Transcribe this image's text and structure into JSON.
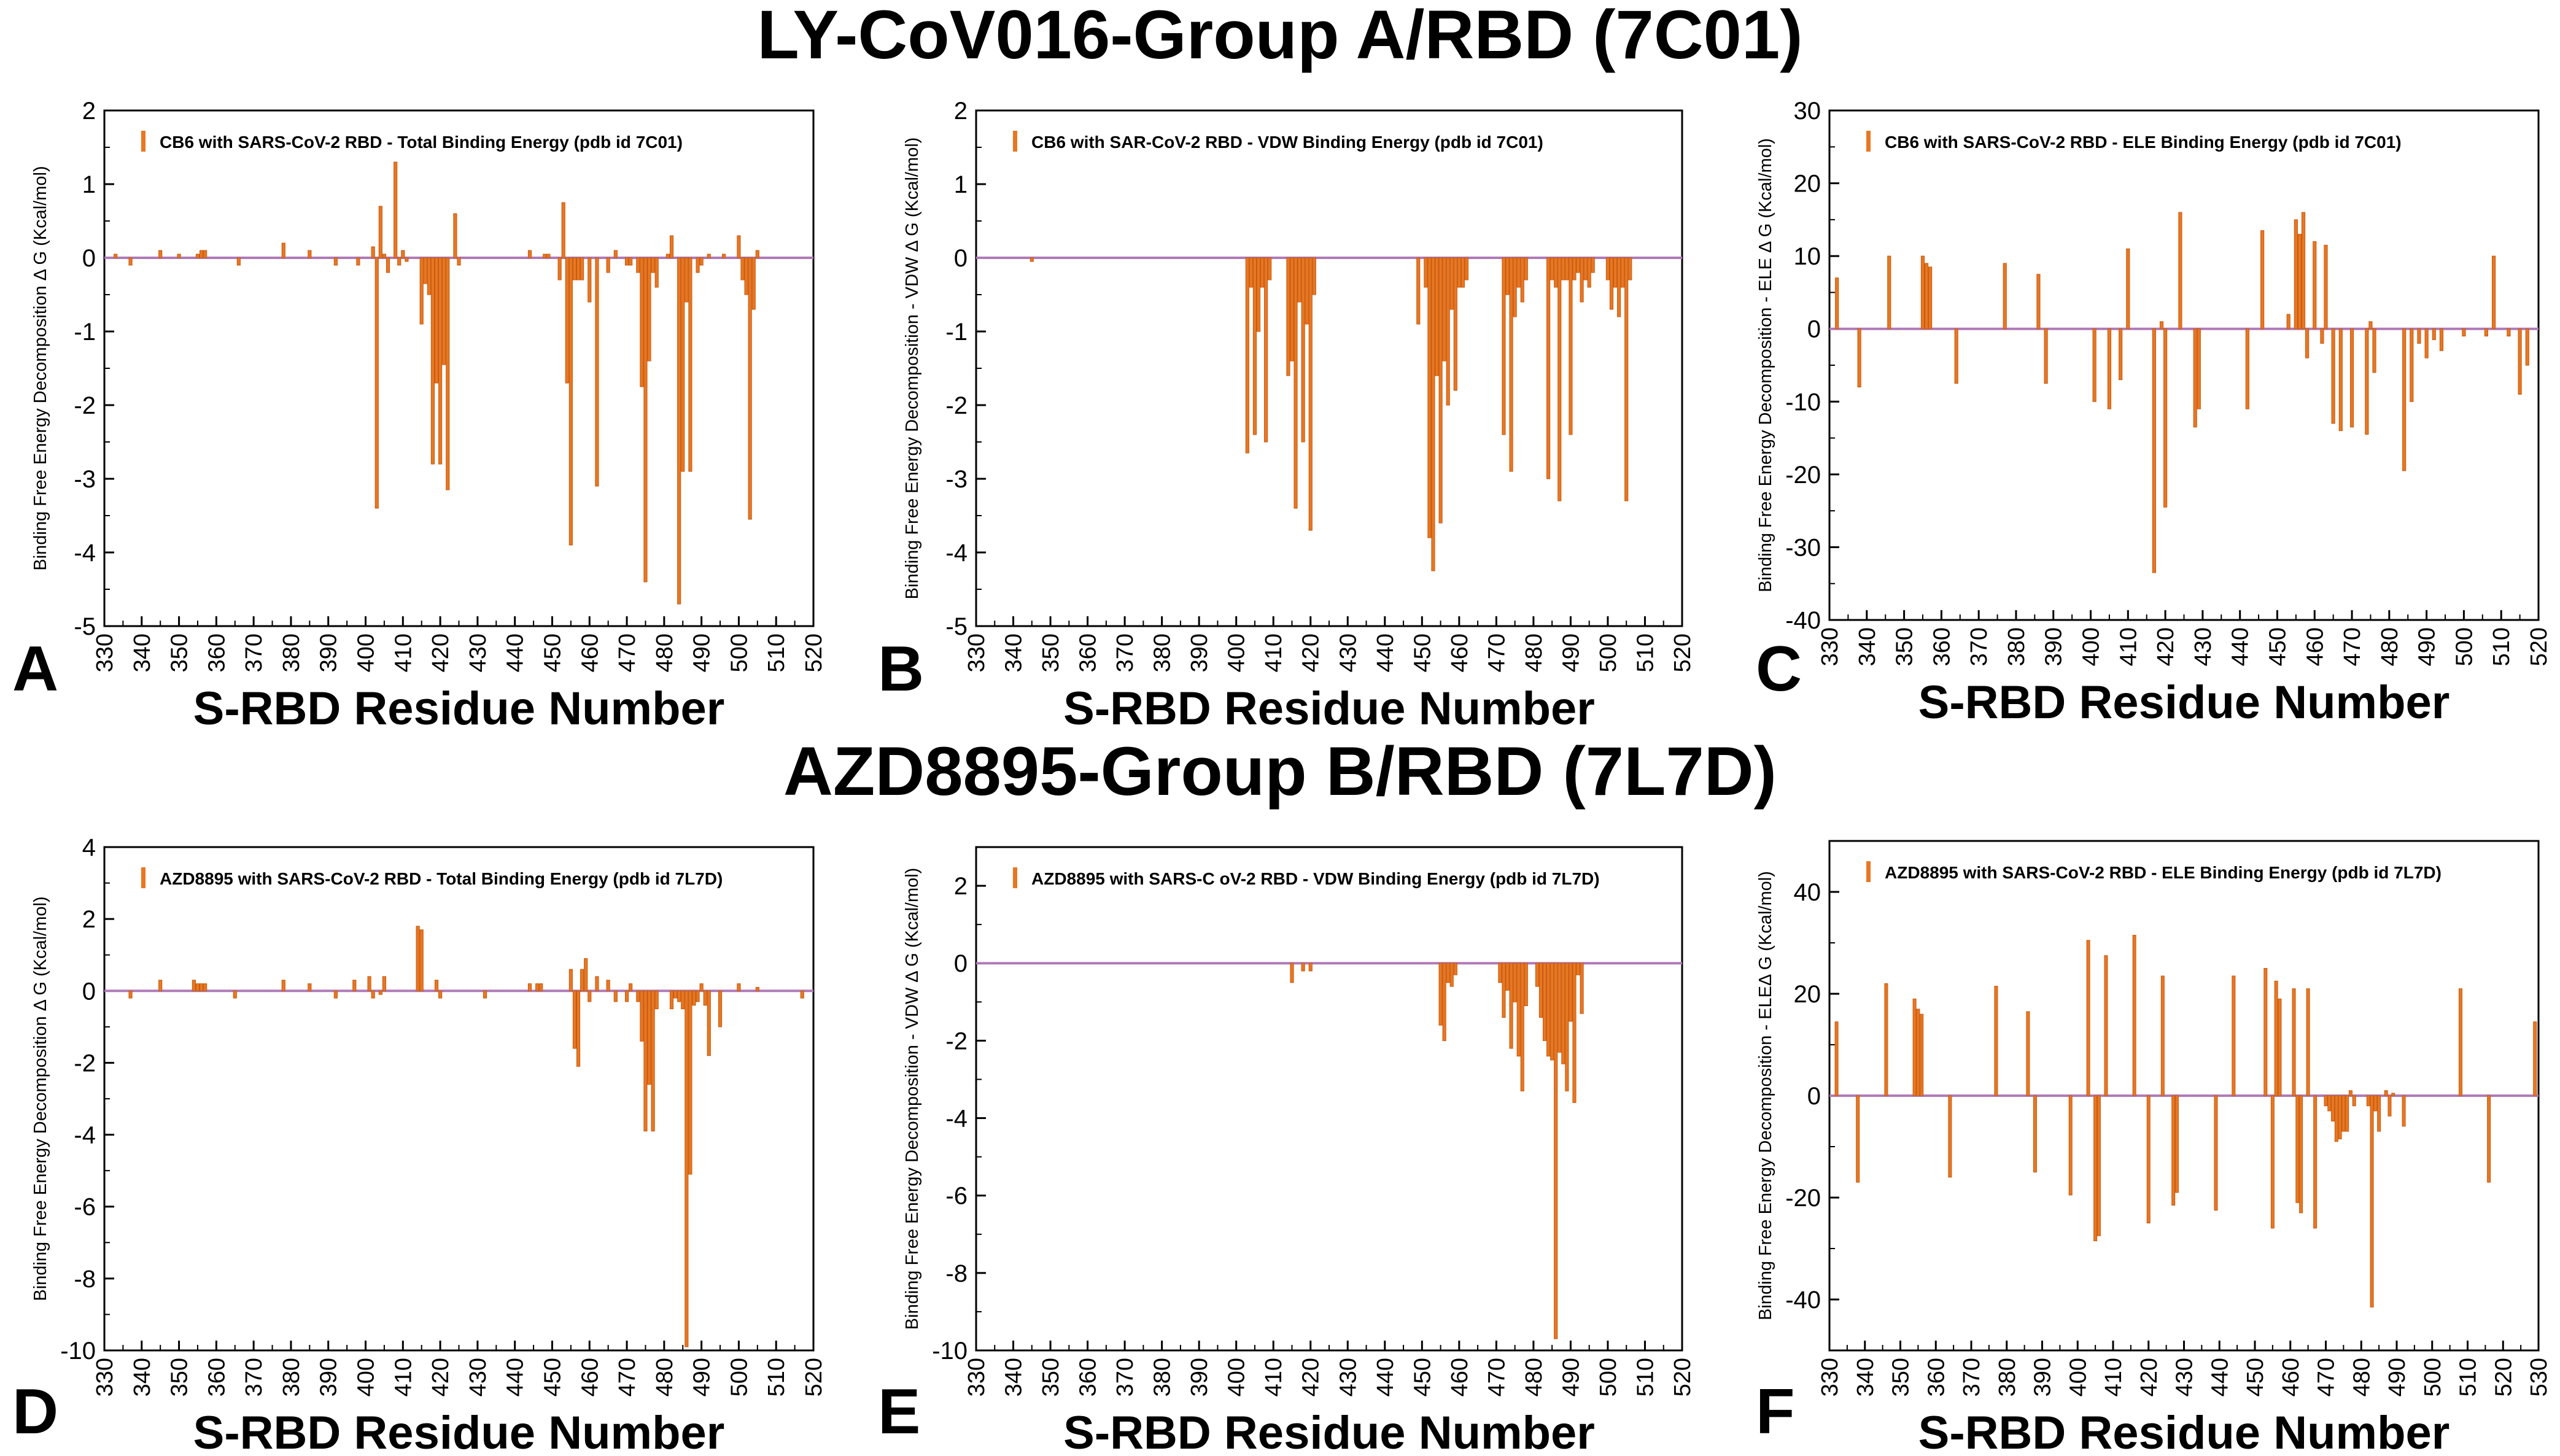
{
  "titles": {
    "top": "LY-CoV016-Group A/RBD (7C01)",
    "middle": "AZD8895-Group B/RBD (7L7D)"
  },
  "colors": {
    "bar": "#e87722",
    "baseline": "#b07ab8",
    "frame": "#000000"
  },
  "chart_data": [
    {
      "panel": "A",
      "type": "bar",
      "legend": "CB6  with SARS-CoV-2 RBD -  Total Binding Energy (pdb id 7C01)",
      "ylabel": "Binding Free Energy Decomposition Δ G (Kcal/mol)",
      "xlabel": "S-RBD Residue Number",
      "xlim": [
        330,
        520
      ],
      "ylim": [
        -5,
        2
      ],
      "xticks": [
        330,
        340,
        350,
        360,
        370,
        380,
        390,
        400,
        410,
        420,
        430,
        440,
        450,
        460,
        470,
        480,
        490,
        500,
        510,
        520
      ],
      "yticks": [
        -5,
        -4,
        -3,
        -2,
        -1,
        0,
        1,
        2
      ],
      "x": [
        333,
        337,
        345,
        350,
        355,
        356,
        357,
        366,
        378,
        385,
        392,
        398,
        402,
        403,
        404,
        405,
        406,
        408,
        409,
        410,
        411,
        415,
        416,
        417,
        418,
        419,
        420,
        421,
        422,
        424,
        425,
        444,
        448,
        449,
        452,
        453,
        454,
        455,
        456,
        457,
        458,
        460,
        462,
        465,
        467,
        470,
        471,
        473,
        474,
        475,
        476,
        477,
        478,
        481,
        482,
        484,
        485,
        486,
        487,
        489,
        490,
        492,
        496,
        500,
        501,
        502,
        503,
        504,
        505
      ],
      "values": [
        0.05,
        -0.1,
        0.1,
        0.05,
        0.05,
        0.1,
        0.1,
        -0.1,
        0.2,
        0.1,
        -0.1,
        -0.1,
        0.15,
        -3.4,
        0.7,
        0.05,
        -0.2,
        1.3,
        -0.1,
        0.1,
        -0.05,
        -0.9,
        -0.35,
        -0.5,
        -2.8,
        -1.7,
        -2.8,
        -1.45,
        -3.15,
        0.6,
        -0.1,
        0.1,
        0.05,
        0.05,
        -0.3,
        0.75,
        -1.7,
        -3.9,
        -0.3,
        -0.3,
        -0.3,
        -0.6,
        -3.1,
        -0.2,
        0.1,
        -0.1,
        -0.1,
        -0.2,
        -1.75,
        -4.4,
        -1.4,
        -0.2,
        -0.4,
        0.05,
        0.3,
        -4.7,
        -2.9,
        -0.6,
        -2.9,
        -0.2,
        -0.1,
        0.05,
        0.05,
        0.3,
        -0.3,
        -0.5,
        -3.55,
        -0.7,
        0.1
      ]
    },
    {
      "panel": "B",
      "type": "bar",
      "legend": "CB6 with SAR-CoV-2 RBD -  VDW Binding Energy (pdb id 7C01)",
      "ylabel": "Binding Free Energy Decomposition - VDW  Δ G (Kcal/mol)",
      "xlabel": "S-RBD Residue Number",
      "xlim": [
        330,
        520
      ],
      "ylim": [
        -5,
        2
      ],
      "xticks": [
        330,
        340,
        350,
        360,
        370,
        380,
        390,
        400,
        410,
        420,
        430,
        440,
        450,
        460,
        470,
        480,
        490,
        500,
        510,
        520
      ],
      "yticks": [
        -5,
        -4,
        -3,
        -2,
        -1,
        0,
        1,
        2
      ],
      "x": [
        345,
        403,
        404,
        405,
        406,
        407,
        408,
        409,
        414,
        415,
        416,
        417,
        418,
        419,
        420,
        421,
        449,
        451,
        452,
        453,
        454,
        455,
        456,
        457,
        458,
        459,
        460,
        461,
        462,
        472,
        473,
        474,
        475,
        476,
        477,
        478,
        484,
        485,
        486,
        487,
        488,
        489,
        490,
        491,
        492,
        493,
        494,
        495,
        496,
        500,
        501,
        502,
        503,
        504,
        505,
        506
      ],
      "values": [
        -0.05,
        -2.65,
        -0.4,
        -2.4,
        -1.0,
        -0.4,
        -2.5,
        -0.3,
        -1.6,
        -1.4,
        -3.4,
        -0.6,
        -2.5,
        -0.9,
        -3.7,
        -0.5,
        -0.9,
        -0.4,
        -3.8,
        -4.25,
        -1.6,
        -3.6,
        -1.4,
        -2.0,
        -0.7,
        -1.8,
        -0.4,
        -0.4,
        -0.3,
        -2.4,
        -0.5,
        -2.9,
        -0.8,
        -0.4,
        -0.6,
        -0.3,
        -3.0,
        -0.3,
        -0.4,
        -3.3,
        -0.3,
        -0.3,
        -2.4,
        -0.3,
        -0.2,
        -0.6,
        -0.3,
        -0.4,
        -0.2,
        -0.3,
        -0.7,
        -0.4,
        -0.8,
        -0.4,
        -3.3,
        -0.3
      ]
    },
    {
      "panel": "C",
      "type": "bar",
      "legend": "CB6  with SARS-CoV-2 RBD -  ELE Binding Energy (pdb id 7C01)",
      "ylabel": "Binding Free Energy Decomposition - ELE Δ G (Kcal/mol)",
      "xlabel": "S-RBD Residue Number",
      "xlim": [
        330,
        520
      ],
      "ylim": [
        -40,
        30
      ],
      "xticks": [
        330,
        340,
        350,
        360,
        370,
        380,
        390,
        400,
        410,
        420,
        430,
        440,
        450,
        460,
        470,
        480,
        490,
        500,
        510,
        520
      ],
      "yticks": [
        -40,
        -30,
        -20,
        -10,
        0,
        10,
        20,
        30
      ],
      "x": [
        332,
        338,
        346,
        355,
        356,
        357,
        364,
        377,
        386,
        388,
        401,
        405,
        408,
        410,
        417,
        419,
        420,
        424,
        428,
        429,
        442,
        446,
        453,
        455,
        456,
        457,
        458,
        460,
        462,
        463,
        465,
        467,
        470,
        474,
        475,
        476,
        484,
        486,
        488,
        490,
        492,
        494,
        500,
        506,
        508,
        512,
        515,
        517
      ],
      "values": [
        7,
        -8,
        10,
        10,
        9,
        8.5,
        -7.5,
        9,
        7.5,
        -7.5,
        -10,
        -11,
        -7,
        11,
        -33.5,
        1,
        -24.5,
        16,
        -13.5,
        -11,
        -11,
        13.5,
        2,
        15,
        13,
        16,
        -4,
        12,
        -2,
        11.5,
        -13,
        -14,
        -13.5,
        -14.5,
        1,
        -6,
        -19.5,
        -10,
        -2,
        -4,
        -1.5,
        -3,
        -1,
        -1,
        10,
        -1,
        -9,
        -5
      ]
    },
    {
      "panel": "D",
      "type": "bar",
      "legend": "AZD8895 with SARS-CoV-2 RBD -  Total Binding Energy (pdb id 7L7D)",
      "ylabel": "Binding Free Energy Decomposition  Δ G (Kcal/mol)",
      "xlabel": "S-RBD Residue Number",
      "xlim": [
        330,
        520
      ],
      "ylim": [
        -10,
        4
      ],
      "xticks": [
        330,
        340,
        350,
        360,
        370,
        380,
        390,
        400,
        410,
        420,
        430,
        440,
        450,
        460,
        470,
        480,
        490,
        500,
        510,
        520
      ],
      "yticks": [
        -10,
        -8,
        -6,
        -4,
        -2,
        0,
        2,
        4
      ],
      "x": [
        337,
        345,
        354,
        355,
        356,
        357,
        365,
        378,
        385,
        392,
        397,
        401,
        402,
        404,
        405,
        414,
        415,
        419,
        420,
        432,
        444,
        446,
        447,
        455,
        456,
        457,
        458,
        459,
        460,
        462,
        465,
        467,
        470,
        471,
        473,
        474,
        475,
        476,
        477,
        478,
        482,
        483,
        484,
        485,
        486,
        487,
        488,
        489,
        490,
        491,
        492,
        495,
        500,
        505,
        517
      ],
      "values": [
        -0.2,
        0.3,
        0.3,
        0.2,
        0.2,
        0.2,
        -0.2,
        0.3,
        0.2,
        -0.2,
        0.3,
        0.4,
        -0.2,
        -0.1,
        0.4,
        1.8,
        1.7,
        0.3,
        -0.2,
        -0.2,
        0.2,
        0.2,
        0.2,
        0.6,
        -1.6,
        -2.1,
        0.6,
        0.9,
        -0.3,
        0.4,
        0.3,
        -0.3,
        -0.3,
        0.2,
        -0.3,
        -1.4,
        -3.9,
        -2.6,
        -3.9,
        -0.5,
        -0.5,
        -0.2,
        -0.3,
        -0.5,
        -9.9,
        -5.1,
        -0.4,
        -0.3,
        0.2,
        -0.4,
        -1.8,
        -1.0,
        0.2,
        0.1,
        -0.2
      ]
    },
    {
      "panel": "E",
      "type": "bar",
      "legend": "AZD8895 with SARS-C oV-2 RBD -  VDW Binding Energy (pdb id 7L7D)",
      "ylabel": "Binding Free Energy Decomposition - VDW  Δ G (Kcal/mol)",
      "xlabel": "S-RBD Residue Number",
      "xlim": [
        330,
        520
      ],
      "ylim": [
        -10,
        3
      ],
      "xticks": [
        330,
        340,
        350,
        360,
        370,
        380,
        390,
        400,
        410,
        420,
        430,
        440,
        450,
        460,
        470,
        480,
        490,
        500,
        510,
        520
      ],
      "yticks": [
        -10,
        -8,
        -6,
        -4,
        -2,
        0,
        2
      ],
      "x": [
        415,
        418,
        420,
        455,
        456,
        457,
        458,
        459,
        471,
        472,
        473,
        474,
        475,
        476,
        477,
        478,
        481,
        482,
        483,
        484,
        485,
        486,
        487,
        488,
        489,
        490,
        491,
        492,
        493
      ],
      "values": [
        -0.5,
        -0.2,
        -0.2,
        -1.6,
        -2.0,
        -0.5,
        -0.6,
        -0.3,
        -0.5,
        -1.4,
        -0.7,
        -2.2,
        -1.0,
        -2.4,
        -3.3,
        -1.1,
        -0.6,
        -1.4,
        -2.0,
        -2.4,
        -2.5,
        -9.7,
        -2.3,
        -2.6,
        -3.3,
        -1.5,
        -3.6,
        -0.3,
        -1.3
      ]
    },
    {
      "panel": "F",
      "type": "bar",
      "legend": "AZD8895  with SARS-CoV-2 RBD -  ELE Binding Energy (pdb id 7L7D)",
      "ylabel": "Binding Free Energy Decomposition - ELEΔ G (Kcal/mol)",
      "xlabel": "S-RBD Residue Number",
      "xlim": [
        330,
        530
      ],
      "ylim": [
        -50,
        50
      ],
      "xticks": [
        330,
        340,
        350,
        360,
        370,
        380,
        390,
        400,
        410,
        420,
        430,
        440,
        450,
        460,
        470,
        480,
        490,
        500,
        510,
        520,
        530
      ],
      "yticks": [
        -40,
        -20,
        0,
        20,
        40
      ],
      "x": [
        332,
        338,
        346,
        354,
        355,
        356,
        364,
        377,
        386,
        388,
        398,
        403,
        405,
        406,
        408,
        416,
        420,
        424,
        427,
        428,
        439,
        444,
        453,
        455,
        456,
        457,
        461,
        462,
        463,
        465,
        467,
        470,
        471,
        472,
        473,
        474,
        475,
        476,
        477,
        478,
        482,
        483,
        484,
        485,
        487,
        488,
        489,
        492,
        508,
        516,
        529
      ],
      "values": [
        14.5,
        -17,
        22,
        19,
        17,
        16,
        -16,
        21.5,
        16.5,
        -15,
        -19.5,
        30.5,
        -28.5,
        -27.5,
        27.5,
        31.5,
        -25,
        23.5,
        -21.5,
        -19,
        -22.5,
        23.5,
        25,
        -26,
        22.5,
        19,
        21,
        -21,
        -23,
        21,
        -26,
        -2,
        -3,
        -5,
        -9,
        -8.5,
        -7,
        -7,
        1,
        -2,
        -2,
        -41.5,
        -3,
        -7,
        1,
        -4,
        0.5,
        -6,
        21,
        -17,
        14.5
      ]
    }
  ],
  "panel_labels": [
    "A",
    "B",
    "C",
    "D",
    "E",
    "F"
  ]
}
